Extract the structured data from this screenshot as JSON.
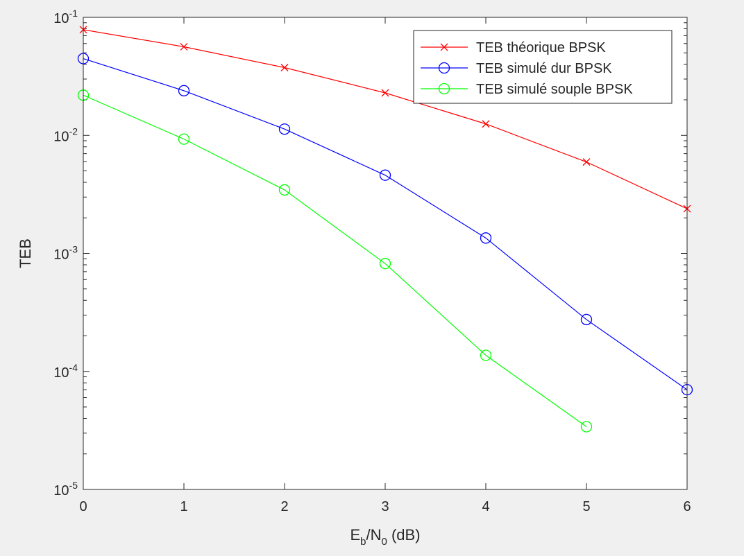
{
  "chart_data": {
    "type": "line",
    "title": "",
    "xlabel": {
      "base": "E",
      "sub1": "b",
      "mid": "/N",
      "sub2": "0",
      "tail": " (dB)"
    },
    "ylabel": "TEB",
    "xlim": [
      0,
      6
    ],
    "ylim": [
      1e-05,
      0.1
    ],
    "yscale": "log",
    "grid": false,
    "legend_position": "top-right",
    "x_ticks": [
      "0",
      "1",
      "2",
      "3",
      "4",
      "5",
      "6"
    ],
    "y_ticks": [
      {
        "base": "10",
        "exp": "-5",
        "value": 1e-05
      },
      {
        "base": "10",
        "exp": "-4",
        "value": 0.0001
      },
      {
        "base": "10",
        "exp": "-3",
        "value": 0.001
      },
      {
        "base": "10",
        "exp": "-2",
        "value": 0.01
      },
      {
        "base": "10",
        "exp": "-1",
        "value": 0.1
      }
    ],
    "series": [
      {
        "name": "TEB théorique BPSK",
        "color": "#ff0000",
        "marker": "x",
        "x": [
          0,
          1,
          2,
          3,
          4,
          5,
          6
        ],
        "y": [
          0.0786,
          0.0563,
          0.0375,
          0.0229,
          0.0125,
          0.00595,
          0.00239
        ]
      },
      {
        "name": "TEB simulé dur BPSK",
        "color": "#0000ff",
        "marker": "o",
        "x": [
          0,
          1,
          2,
          3,
          4,
          5,
          6
        ],
        "y": [
          0.0447,
          0.0239,
          0.0113,
          0.0046,
          0.00135,
          0.000275,
          7e-05
        ]
      },
      {
        "name": "TEB simulé souple BPSK",
        "color": "#00ff00",
        "marker": "o",
        "x": [
          0,
          1,
          2,
          3,
          4,
          5
        ],
        "y": [
          0.0219,
          0.0093,
          0.00345,
          0.00082,
          0.000137,
          3.4e-05
        ]
      }
    ]
  }
}
